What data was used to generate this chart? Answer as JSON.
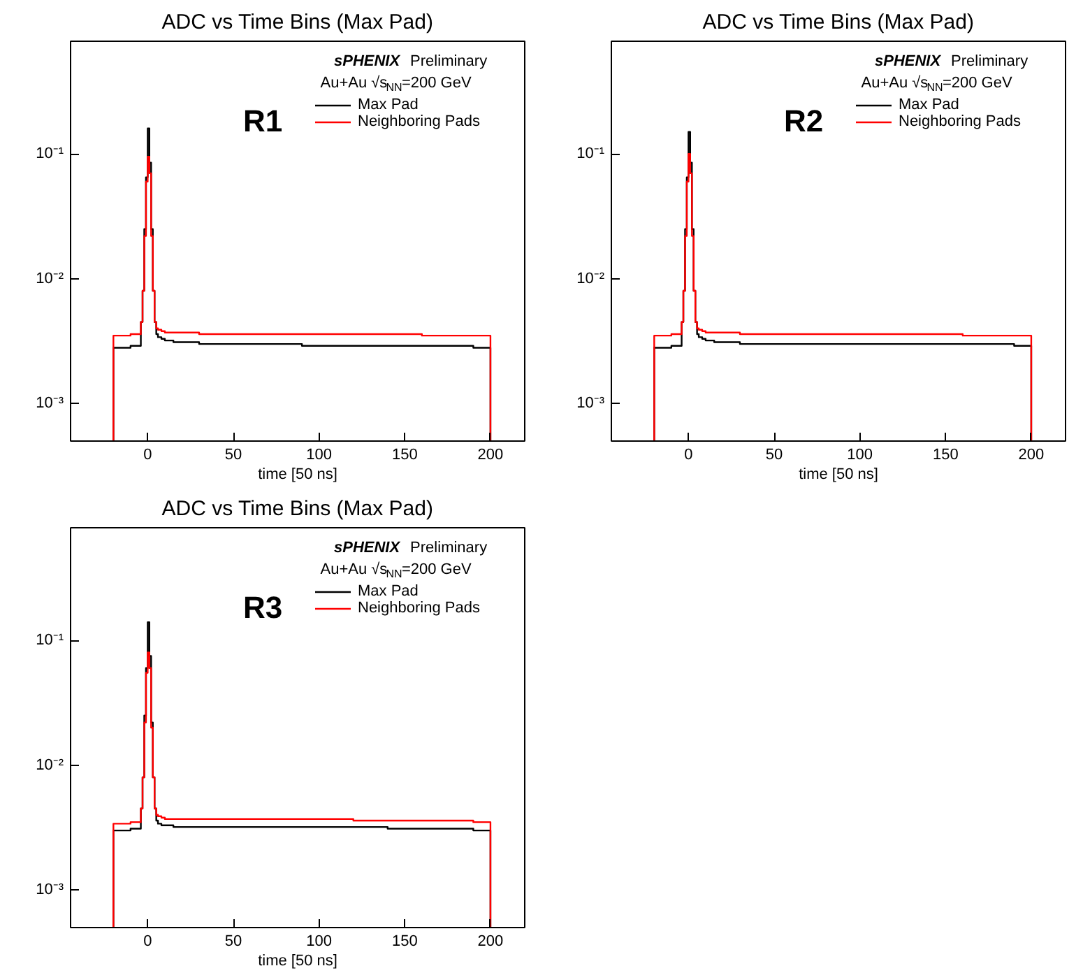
{
  "chart_data": [
    {
      "type": "histogram",
      "title": "ADC vs Time Bins (Max Pad)",
      "xlabel": "time [50 ns]",
      "log": "y",
      "grid": false,
      "legend": "top right",
      "annotations": [
        "sPHENIX Preliminary",
        "Au+Au √s$_{NN}$=200 GeV",
        "R1"
      ],
      "xlim": [
        -45,
        220
      ],
      "ylim": [
        0.0005,
        0.8
      ],
      "xticks": [
        0,
        50,
        100,
        150,
        200
      ],
      "yticks": [
        {
          "value": 0.001,
          "label": "10⁻³"
        },
        {
          "value": 0.01,
          "label": "10⁻²"
        },
        {
          "value": 0.1,
          "label": "10⁻¹"
        }
      ],
      "bins": [
        -20,
        -10,
        -4,
        -3,
        -2,
        -1,
        0,
        1,
        2,
        3,
        4,
        5,
        6,
        8,
        10,
        15,
        20,
        30,
        40,
        50,
        60,
        70,
        80,
        90,
        100,
        110,
        120,
        130,
        140,
        150,
        160,
        170,
        180,
        190,
        200
      ],
      "series": [
        {
          "name": "Max Pad",
          "color": "#000000",
          "values": [
            0.0028,
            0.0029,
            0.0045,
            0.008,
            0.025,
            0.065,
            0.16,
            0.085,
            0.025,
            0.008,
            0.0045,
            0.0036,
            0.0034,
            0.0033,
            0.0032,
            0.0031,
            0.0031,
            0.003,
            0.003,
            0.003,
            0.003,
            0.003,
            0.003,
            0.0029,
            0.0029,
            0.0029,
            0.0029,
            0.0029,
            0.0029,
            0.0029,
            0.0029,
            0.0029,
            0.0029,
            0.0028
          ]
        },
        {
          "name": "Neighboring Pads",
          "color": "#ff0000",
          "values": [
            0.0035,
            0.0036,
            0.0045,
            0.008,
            0.022,
            0.06,
            0.095,
            0.07,
            0.022,
            0.008,
            0.0045,
            0.004,
            0.0039,
            0.0038,
            0.0037,
            0.0037,
            0.0037,
            0.0036,
            0.0036,
            0.0036,
            0.0036,
            0.0036,
            0.0036,
            0.0036,
            0.0036,
            0.0036,
            0.0036,
            0.0036,
            0.0036,
            0.0036,
            0.0035,
            0.0035,
            0.0035,
            0.0035
          ]
        }
      ]
    },
    {
      "type": "histogram",
      "title": "ADC vs Time Bins (Max Pad)",
      "xlabel": "time [50 ns]",
      "log": "y",
      "grid": false,
      "legend": "top right",
      "annotations": [
        "sPHENIX Preliminary",
        "Au+Au √s$_{NN}$=200 GeV",
        "R2"
      ],
      "xlim": [
        -45,
        220
      ],
      "ylim": [
        0.0005,
        0.8
      ],
      "xticks": [
        0,
        50,
        100,
        150,
        200
      ],
      "yticks": [
        {
          "value": 0.001,
          "label": "10⁻³"
        },
        {
          "value": 0.01,
          "label": "10⁻²"
        },
        {
          "value": 0.1,
          "label": "10⁻¹"
        }
      ],
      "bins": [
        -20,
        -10,
        -4,
        -3,
        -2,
        -1,
        0,
        1,
        2,
        3,
        4,
        5,
        6,
        8,
        10,
        15,
        20,
        30,
        40,
        50,
        60,
        70,
        80,
        90,
        100,
        110,
        120,
        130,
        140,
        150,
        160,
        170,
        180,
        190,
        200
      ],
      "series": [
        {
          "name": "Max Pad",
          "color": "#000000",
          "values": [
            0.0028,
            0.0029,
            0.0045,
            0.008,
            0.025,
            0.065,
            0.15,
            0.085,
            0.025,
            0.008,
            0.0045,
            0.0036,
            0.0034,
            0.0033,
            0.0032,
            0.0031,
            0.0031,
            0.003,
            0.003,
            0.003,
            0.003,
            0.003,
            0.003,
            0.003,
            0.003,
            0.003,
            0.003,
            0.003,
            0.003,
            0.003,
            0.003,
            0.003,
            0.003,
            0.0029
          ]
        },
        {
          "name": "Neighboring Pads",
          "color": "#ff0000",
          "values": [
            0.0035,
            0.0036,
            0.0045,
            0.008,
            0.022,
            0.06,
            0.1,
            0.07,
            0.022,
            0.008,
            0.0045,
            0.004,
            0.0039,
            0.0038,
            0.0037,
            0.0037,
            0.0037,
            0.0036,
            0.0036,
            0.0036,
            0.0036,
            0.0036,
            0.0036,
            0.0036,
            0.0036,
            0.0036,
            0.0036,
            0.0036,
            0.0036,
            0.0036,
            0.0035,
            0.0035,
            0.0035,
            0.0035
          ]
        }
      ]
    },
    {
      "type": "histogram",
      "title": "ADC vs Time Bins (Max Pad)",
      "xlabel": "time [50 ns]",
      "log": "y",
      "grid": false,
      "legend": "top right",
      "annotations": [
        "sPHENIX Preliminary",
        "Au+Au √s$_{NN}$=200 GeV",
        "R3"
      ],
      "xlim": [
        -45,
        220
      ],
      "ylim": [
        0.0005,
        0.8
      ],
      "xticks": [
        0,
        50,
        100,
        150,
        200
      ],
      "yticks": [
        {
          "value": 0.001,
          "label": "10⁻³"
        },
        {
          "value": 0.01,
          "label": "10⁻²"
        },
        {
          "value": 0.1,
          "label": "10⁻¹"
        }
      ],
      "bins": [
        -20,
        -10,
        -4,
        -3,
        -2,
        -1,
        0,
        1,
        2,
        3,
        4,
        5,
        6,
        8,
        10,
        15,
        20,
        30,
        40,
        50,
        60,
        70,
        80,
        90,
        100,
        110,
        120,
        130,
        140,
        150,
        160,
        170,
        180,
        190,
        200
      ],
      "series": [
        {
          "name": "Max Pad",
          "color": "#000000",
          "values": [
            0.003,
            0.0031,
            0.0045,
            0.008,
            0.025,
            0.06,
            0.14,
            0.075,
            0.022,
            0.008,
            0.0045,
            0.0036,
            0.0034,
            0.0033,
            0.0033,
            0.0032,
            0.0032,
            0.0032,
            0.0032,
            0.0032,
            0.0032,
            0.0032,
            0.0032,
            0.0032,
            0.0032,
            0.0032,
            0.0032,
            0.0032,
            0.0031,
            0.0031,
            0.0031,
            0.0031,
            0.0031,
            0.003
          ]
        },
        {
          "name": "Neighboring Pads",
          "color": "#ff0000",
          "values": [
            0.0034,
            0.0035,
            0.0045,
            0.008,
            0.022,
            0.055,
            0.08,
            0.06,
            0.02,
            0.008,
            0.0045,
            0.004,
            0.0039,
            0.0038,
            0.0037,
            0.0037,
            0.0037,
            0.0037,
            0.0037,
            0.0037,
            0.0037,
            0.0037,
            0.0037,
            0.0037,
            0.0037,
            0.0037,
            0.0036,
            0.0036,
            0.0036,
            0.0036,
            0.0036,
            0.0036,
            0.0036,
            0.0035
          ]
        }
      ]
    }
  ]
}
